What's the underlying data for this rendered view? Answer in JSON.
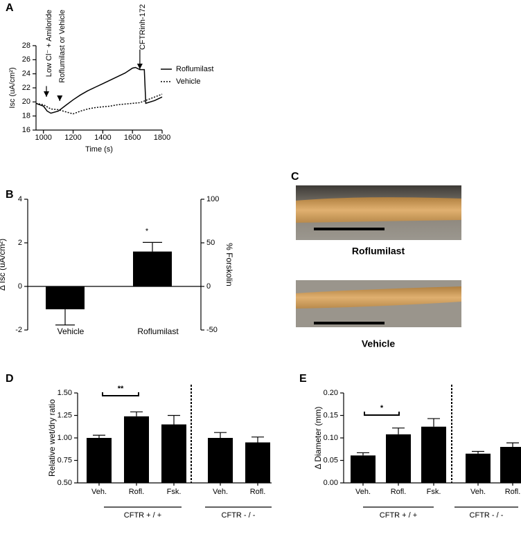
{
  "chart_data": [
    {
      "type": "line",
      "panel": "A",
      "xlabel": "Time (s)",
      "ylabel": "Isc (uA/cm²)",
      "xlim": [
        950,
        1800
      ],
      "xticks": [
        1000,
        1200,
        1400,
        1600,
        1800
      ],
      "ylim": [
        16,
        28
      ],
      "yticks": [
        16,
        18,
        20,
        22,
        24,
        26,
        28
      ],
      "annotations": [
        "Low Cl⁻ + Amiloride",
        "Roflumilast or Vehicle",
        "CFTRinh-172"
      ],
      "series": [
        {
          "name": "Roflumilast",
          "color": "#000000",
          "style": "solid",
          "x": [
            950,
            1000,
            1025,
            1050,
            1100,
            1150,
            1200,
            1250,
            1300,
            1350,
            1400,
            1450,
            1500,
            1550,
            1600,
            1620,
            1650,
            1680,
            1690,
            1750,
            1800
          ],
          "values": [
            19.8,
            19.4,
            18.7,
            18.4,
            18.7,
            19.5,
            20.3,
            21.0,
            21.6,
            22.1,
            22.6,
            23.1,
            23.6,
            24.1,
            24.8,
            24.9,
            24.6,
            24.6,
            19.8,
            20.2,
            20.7
          ]
        },
        {
          "name": "Vehicle",
          "color": "#000000",
          "style": "dotted",
          "x": [
            950,
            1000,
            1050,
            1100,
            1150,
            1200,
            1250,
            1300,
            1350,
            1400,
            1450,
            1500,
            1550,
            1600,
            1650,
            1700,
            1750,
            1800
          ],
          "values": [
            19.8,
            19.6,
            19.0,
            18.9,
            18.6,
            18.3,
            18.7,
            19.0,
            19.2,
            19.3,
            19.4,
            19.6,
            19.7,
            19.8,
            19.9,
            20.3,
            20.7,
            21.1
          ]
        }
      ]
    },
    {
      "type": "bar",
      "panel": "B",
      "ylabel": "Δ Isc (uA/cm²)",
      "y2label": "% Forskolin",
      "categories": [
        "Vehicle",
        "Roflumilast"
      ],
      "values": [
        -1.05,
        1.6
      ],
      "errors": [
        0.72,
        0.42
      ],
      "color": "#000000",
      "ylim": [
        -2,
        4
      ],
      "yticks": [
        -2,
        0,
        2,
        4
      ],
      "y2lim": [
        -50,
        100
      ],
      "y2ticks": [
        -50,
        0,
        50,
        100
      ],
      "annotations": [
        "*"
      ]
    },
    {
      "type": "bar",
      "panel": "D",
      "ylabel": "Relative wet/dry ratio",
      "categories": [
        "Veh.",
        "Rofl.",
        "Fsk.",
        "Veh.",
        "Rofl."
      ],
      "values": [
        1.0,
        1.24,
        1.15,
        1.0,
        0.95
      ],
      "errors": [
        0.03,
        0.05,
        0.1,
        0.06,
        0.06
      ],
      "color": "#000000",
      "ylim": [
        0.5,
        1.5
      ],
      "yticks": [
        {
          "value": 0.5,
          "label": "0.50"
        },
        {
          "value": 0.75,
          "label": "0.75"
        },
        {
          "value": 1,
          "label": "1.00"
        },
        {
          "value": 1.25,
          "label": "1.25"
        },
        {
          "value": 1.5,
          "label": "1.50"
        }
      ],
      "groups": [
        "CFTR + / +",
        "CFTR - / -"
      ],
      "annotations": [
        "**"
      ]
    },
    {
      "type": "bar",
      "panel": "E",
      "ylabel": "Δ Diameter (mm)",
      "categories": [
        "Veh.",
        "Rofl.",
        "Fsk.",
        "Veh.",
        "Rofl."
      ],
      "values": [
        0.061,
        0.108,
        0.125,
        0.065,
        0.08
      ],
      "errors": [
        0.006,
        0.014,
        0.018,
        0.005,
        0.009
      ],
      "color": "#000000",
      "ylim": [
        0,
        0.2
      ],
      "yticks": [
        {
          "value": 0,
          "label": "0.00"
        },
        {
          "value": 0.05,
          "label": "0.05"
        },
        {
          "value": 0.1,
          "label": "0.10"
        },
        {
          "value": 0.15,
          "label": "0.15"
        },
        {
          "value": 0.2,
          "label": "0.20"
        }
      ],
      "groups": [
        "CFTR + / +",
        "CFTR - / -"
      ],
      "annotations": [
        "*"
      ]
    }
  ],
  "photo_panel": {
    "panel": "C",
    "captions": [
      "Roflumilast",
      "Vehicle"
    ]
  }
}
